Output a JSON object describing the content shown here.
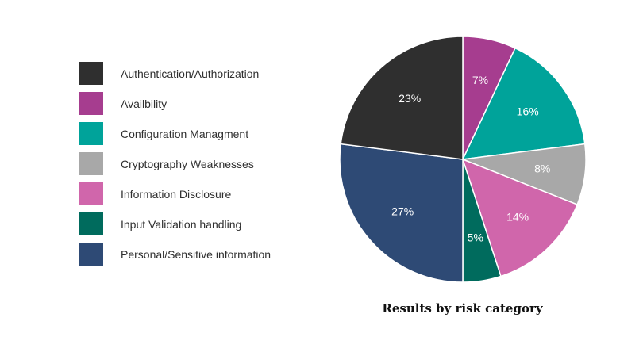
{
  "chart_data": {
    "type": "pie",
    "title": "Results by risk category",
    "slices": [
      {
        "label": "Authentication/Authorization",
        "value": 23,
        "display": "23%",
        "color": "#2f2f2f"
      },
      {
        "label": "Availbility",
        "value": 7,
        "display": "7%",
        "color": "#a63d8f"
      },
      {
        "label": "Configuration Managment",
        "value": 16,
        "display": "16%",
        "color": "#00a39a"
      },
      {
        "label": "Cryptography Weaknesses",
        "value": 8,
        "display": "8%",
        "color": "#a8a8a8"
      },
      {
        "label": "Information Disclosure",
        "value": 14,
        "display": "14%",
        "color": "#d066ab"
      },
      {
        "label": "Input Validation handling",
        "value": 5,
        "display": "5%",
        "color": "#006b5d"
      },
      {
        "label": "Personal/Sensitive information",
        "value": 27,
        "display": "27%",
        "color": "#2e4a75"
      }
    ],
    "slice_order": [
      1,
      2,
      3,
      4,
      5,
      6,
      0
    ],
    "start": "12 o'clock",
    "direction": "clockwise",
    "legend": "left"
  }
}
